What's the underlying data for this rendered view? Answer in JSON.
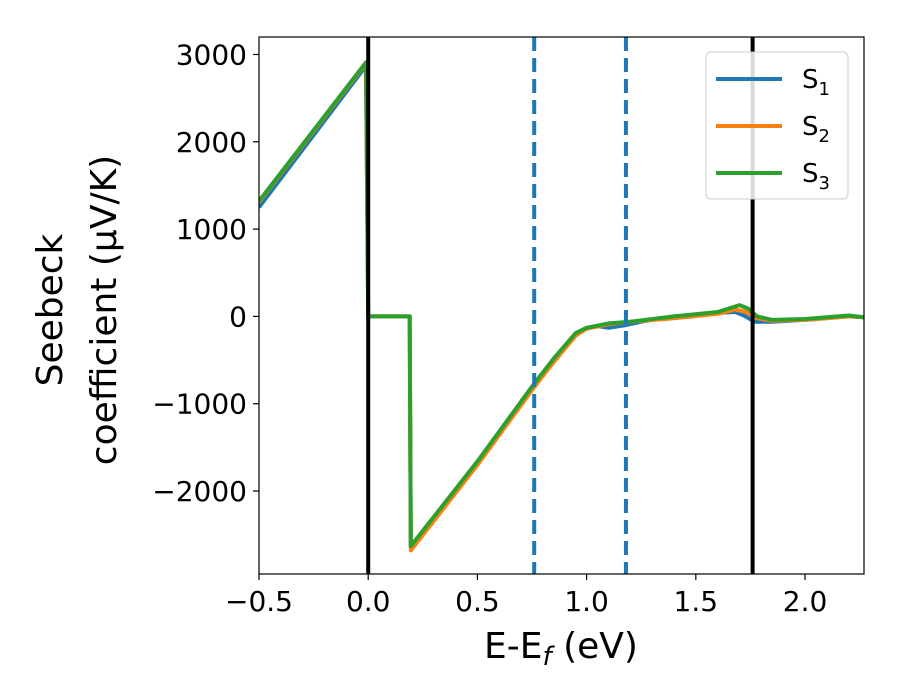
{
  "chart_data": {
    "type": "line",
    "xlabel": {
      "base": "E-E",
      "sub": "f",
      "tail": " (eV)"
    },
    "ylabel": {
      "line1": "Seebeck",
      "line2": "coefficient  (μV/K)"
    },
    "xlim": [
      -0.5,
      2.27
    ],
    "ylim": [
      -2950,
      3200
    ],
    "xticks": [
      -0.5,
      0.0,
      0.5,
      1.0,
      1.5,
      2.0
    ],
    "xtick_labels": [
      "−0.5",
      "0.0",
      "0.5",
      "1.0",
      "1.5",
      "2.0"
    ],
    "yticks": [
      -2000,
      -1000,
      0,
      1000,
      2000,
      3000
    ],
    "ytick_labels": [
      "−2000",
      "−1000",
      "0",
      "1000",
      "2000",
      "3000"
    ],
    "grid": false,
    "legend_position": "top-right",
    "vlines": [
      {
        "x": 0.0,
        "style": "solid",
        "color": "#000000"
      },
      {
        "x": 1.76,
        "style": "solid",
        "color": "#000000"
      },
      {
        "x": 0.76,
        "style": "dashed",
        "color": "#1f77b4"
      },
      {
        "x": 1.18,
        "style": "dashed",
        "color": "#1f77b4"
      }
    ],
    "series": [
      {
        "name": "S",
        "sub": "1",
        "color": "#1f77b4",
        "points": [
          [
            -0.5,
            1250
          ],
          [
            -0.01,
            2870
          ],
          [
            0.0,
            0
          ],
          [
            0.19,
            0
          ],
          [
            0.195,
            -2650
          ],
          [
            0.5,
            -1680
          ],
          [
            0.76,
            -790
          ],
          [
            0.85,
            -500
          ],
          [
            0.95,
            -200
          ],
          [
            1.0,
            -130
          ],
          [
            1.05,
            -110
          ],
          [
            1.1,
            -130
          ],
          [
            1.18,
            -100
          ],
          [
            1.25,
            -60
          ],
          [
            1.4,
            0
          ],
          [
            1.6,
            40
          ],
          [
            1.68,
            50
          ],
          [
            1.72,
            10
          ],
          [
            1.77,
            -60
          ],
          [
            1.85,
            -60
          ],
          [
            2.0,
            -40
          ],
          [
            2.2,
            0
          ],
          [
            2.27,
            -10
          ]
        ]
      },
      {
        "name": "S",
        "sub": "2",
        "color": "#ff7f0e",
        "points": [
          [
            -0.5,
            1310
          ],
          [
            -0.01,
            2900
          ],
          [
            0.0,
            0
          ],
          [
            0.19,
            0
          ],
          [
            0.195,
            -2680
          ],
          [
            0.5,
            -1700
          ],
          [
            0.76,
            -810
          ],
          [
            0.85,
            -520
          ],
          [
            0.95,
            -220
          ],
          [
            1.0,
            -140
          ],
          [
            1.1,
            -90
          ],
          [
            1.2,
            -60
          ],
          [
            1.4,
            -20
          ],
          [
            1.6,
            30
          ],
          [
            1.68,
            80
          ],
          [
            1.73,
            50
          ],
          [
            1.78,
            -20
          ],
          [
            1.85,
            -50
          ],
          [
            2.0,
            -40
          ],
          [
            2.2,
            0
          ],
          [
            2.27,
            -10
          ]
        ]
      },
      {
        "name": "S",
        "sub": "3",
        "color": "#2ca02c",
        "points": [
          [
            -0.5,
            1320
          ],
          [
            -0.01,
            2910
          ],
          [
            0.0,
            0
          ],
          [
            0.19,
            0
          ],
          [
            0.195,
            -2630
          ],
          [
            0.5,
            -1660
          ],
          [
            0.76,
            -770
          ],
          [
            0.85,
            -480
          ],
          [
            0.95,
            -190
          ],
          [
            1.0,
            -130
          ],
          [
            1.1,
            -80
          ],
          [
            1.2,
            -60
          ],
          [
            1.4,
            0
          ],
          [
            1.6,
            50
          ],
          [
            1.7,
            130
          ],
          [
            1.74,
            90
          ],
          [
            1.78,
            0
          ],
          [
            1.85,
            -40
          ],
          [
            2.0,
            -30
          ],
          [
            2.2,
            10
          ],
          [
            2.27,
            -10
          ]
        ]
      }
    ]
  }
}
